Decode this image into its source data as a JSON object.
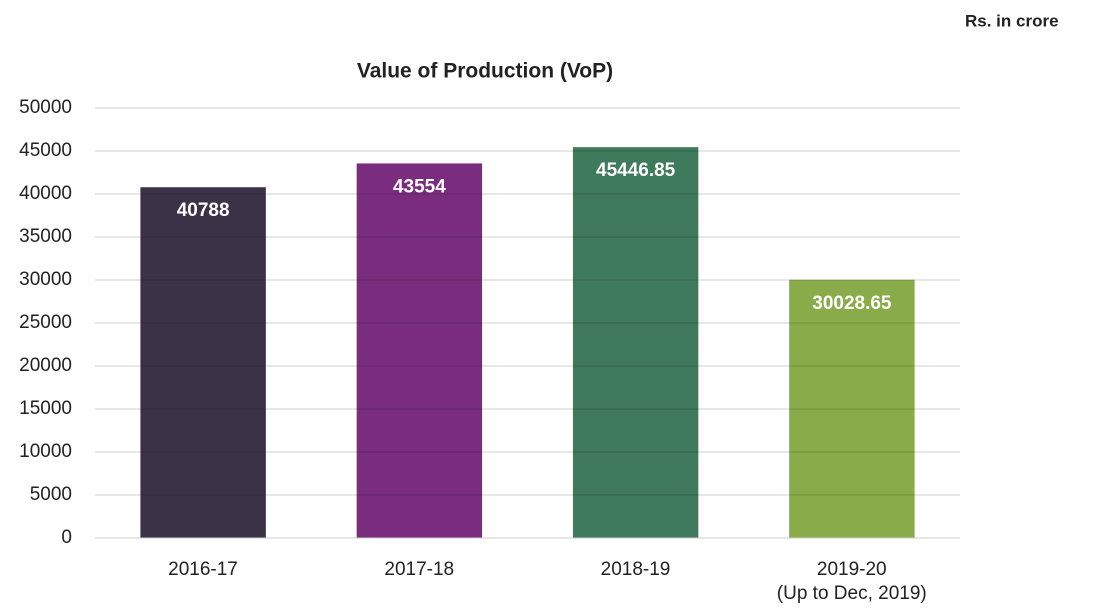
{
  "chart_data": {
    "type": "bar",
    "title": "Value of Production (VoP)",
    "unit_note": "Rs. in crore",
    "categories": [
      "2016-17",
      "2017-18",
      "2018-19",
      "2019-20\n(Up to Dec, 2019)"
    ],
    "values": [
      40788,
      43554,
      45446.85,
      30028.65
    ],
    "colors": [
      "#3b3247",
      "#7a2d7e",
      "#3e7a5b",
      "#8aab49"
    ],
    "ylim": [
      0,
      50000
    ],
    "yticks": [
      0,
      5000,
      10000,
      15000,
      20000,
      25000,
      30000,
      35000,
      40000,
      45000,
      50000
    ],
    "grid": true
  }
}
